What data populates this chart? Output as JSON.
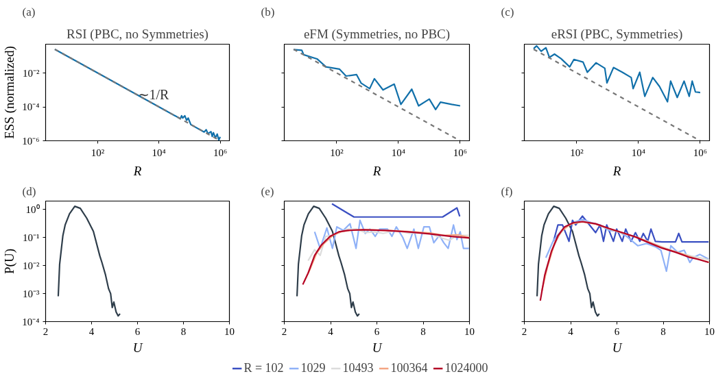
{
  "chart_data": [
    {
      "type": "line",
      "title": "RSI (PBC, no Symmetries)",
      "annotations": [
        "(a)",
        "∼1/R"
      ],
      "xlabel": "R",
      "ylabel": "ESS (normalized)",
      "log": "xy",
      "xlim": [
        2,
        2000000
      ],
      "ylim": [
        1e-06,
        0.5
      ],
      "xticks": [
        {
          "value": 100,
          "label": "10²"
        },
        {
          "value": 10000,
          "label": "10⁴"
        },
        {
          "value": 1000000,
          "label": "10⁶"
        }
      ],
      "yticks": [
        {
          "value": 1e-06,
          "label": "10⁻⁶"
        },
        {
          "value": 0.0001,
          "label": "10⁻⁴"
        },
        {
          "value": 0.01,
          "label": "10⁻²"
        }
      ],
      "series": [
        {
          "color": "#1170aa",
          "x": [
            4,
            100,
            10000,
            50000,
            55000,
            60000,
            70000,
            80000,
            90000,
            110000,
            300000,
            350000,
            400000,
            500000,
            550000,
            600000,
            700000,
            800000,
            900000,
            1000000
          ],
          "values": [
            0.25,
            0.01,
            0.0001,
            2e-05,
            3e-05,
            2.2e-05,
            3e-05,
            1.6e-05,
            2.2e-05,
            9e-06,
            3.3e-06,
            4.5e-06,
            2.6e-06,
            3.5e-06,
            1.8e-06,
            3e-06,
            1.5e-06,
            2.5e-06,
            1.1e-06,
            1.7e-06
          ]
        },
        {
          "color": "#777777",
          "line_style": "dashed",
          "x": [
            4,
            1000000
          ],
          "values": [
            0.25,
            1e-06
          ]
        }
      ]
    },
    {
      "type": "line",
      "title": "eFM (Symmetries, no PBC)",
      "annotations": [
        "(b)"
      ],
      "xlabel": "R",
      "log": "xy",
      "tick_labels": "x",
      "xlim": [
        2,
        2000000
      ],
      "ylim": [
        1e-06,
        0.5
      ],
      "xticks": [
        {
          "value": 100,
          "label": "10²"
        },
        {
          "value": 10000,
          "label": "10⁴"
        },
        {
          "value": 1000000,
          "label": "10⁶"
        }
      ],
      "yticks": [
        {
          "value": 1e-06,
          "label": null
        },
        {
          "value": 0.0001,
          "label": null
        },
        {
          "value": 0.01,
          "label": null
        }
      ],
      "series": [
        {
          "color": "#1170aa",
          "x": [
            4,
            7.4,
            8.5,
            23,
            45,
            122,
            200,
            440,
            620,
            1170,
            1660,
            3160,
            7300,
            12000,
            27000,
            45000,
            100000,
            160000,
            230000,
            530000,
            1000000
          ],
          "values": [
            0.24,
            0.22,
            0.12,
            0.068,
            0.023,
            0.017,
            0.0066,
            0.008,
            0.0025,
            0.0012,
            0.0046,
            0.001,
            0.0022,
            0.00014,
            0.0011,
            0.000115,
            0.00029,
            7e-05,
            0.00019,
            0.00014,
            0.000115
          ]
        },
        {
          "color": "#777777",
          "line_style": "dashed",
          "x": [
            4,
            1000000
          ],
          "values": [
            0.25,
            1e-06
          ]
        }
      ]
    },
    {
      "type": "line",
      "title": "eRSI (PBC, Symmetries)",
      "annotations": [
        "(c)"
      ],
      "xlabel": "R",
      "log": "xy",
      "tick_labels": "x",
      "xlim": [
        2,
        2000000
      ],
      "ylim": [
        1e-06,
        0.5
      ],
      "xticks": [
        {
          "value": 100,
          "label": "10²"
        },
        {
          "value": 10000,
          "label": "10⁴"
        },
        {
          "value": 1000000,
          "label": "10⁶"
        }
      ],
      "yticks": [
        {
          "value": 1e-06,
          "label": null
        },
        {
          "value": 0.0001,
          "label": null
        },
        {
          "value": 0.01,
          "label": null
        }
      ],
      "series": [
        {
          "color": "#1170aa",
          "x": [
            4,
            5,
            7,
            10,
            13,
            19,
            31,
            59,
            81,
            160,
            220,
            420,
            810,
            950,
            1550,
            3000,
            5800,
            6700,
            11000,
            16000,
            29000,
            48000,
            87000,
            110000,
            180000,
            300000,
            440000,
            550000,
            700000,
            1000000
          ],
          "values": [
            0.27,
            0.4,
            0.19,
            0.31,
            0.083,
            0.13,
            0.07,
            0.023,
            0.063,
            0.044,
            0.011,
            0.04,
            0.019,
            0.0026,
            0.021,
            0.011,
            0.0054,
            0.0012,
            0.011,
            0.00042,
            0.0054,
            0.0016,
            0.0002,
            0.0033,
            0.00036,
            0.0033,
            0.00042,
            0.0033,
            0.00076,
            0.0007
          ]
        },
        {
          "color": "#777777",
          "line_style": "dashed",
          "x": [
            4,
            1000000
          ],
          "values": [
            0.25,
            1e-06
          ]
        }
      ]
    },
    {
      "type": "line",
      "annotations": [
        "(d)"
      ],
      "xlabel": "U",
      "ylabel": "P(U)",
      "log": "y",
      "xlim": [
        2,
        10
      ],
      "ylim": [
        0.0001,
        2
      ],
      "xticks": [
        2,
        4,
        6,
        8,
        10
      ],
      "yticks": [
        {
          "value": 0.0001,
          "label": "10⁻⁴"
        },
        {
          "value": 0.001,
          "label": "10⁻³"
        },
        {
          "value": 0.01,
          "label": "10⁻²"
        },
        {
          "value": 0.1,
          "label": "10⁻¹"
        },
        {
          "value": 1,
          "label": "10⁰"
        }
      ],
      "series": [
        {
          "color": "#2e3d4a",
          "x": [
            2.55,
            2.61,
            2.75,
            2.85,
            3.04,
            3.27,
            3.51,
            3.79,
            4.08,
            4.36,
            4.45,
            4.6,
            4.74,
            4.83,
            4.9,
            4.97,
            5.07,
            5.16,
            5.24
          ],
          "values": [
            0.0008,
            0.011,
            0.115,
            0.28,
            0.7,
            1.3,
            1.1,
            0.49,
            0.165,
            0.022,
            0.013,
            0.0049,
            0.0015,
            0.001,
            0.00032,
            0.0005,
            0.00022,
            0.00016,
            0.00019
          ]
        }
      ]
    },
    {
      "type": "line",
      "annotations": [
        "(e)"
      ],
      "xlabel": "U",
      "log": "y",
      "tick_labels": "x",
      "legend": "bottom",
      "xlim": [
        2,
        10
      ],
      "ylim": [
        0.0001,
        2
      ],
      "xticks": [
        2,
        4,
        6,
        8,
        10
      ],
      "yticks": [
        {
          "value": 0.0001,
          "label": null
        },
        {
          "value": 0.001,
          "label": null
        },
        {
          "value": 0.01,
          "label": null
        },
        {
          "value": 0.1,
          "label": null
        },
        {
          "value": 1,
          "label": null
        }
      ],
      "series": [
        {
          "color": "#2e3d4a",
          "x": [
            2.55,
            2.61,
            2.75,
            2.85,
            3.04,
            3.27,
            3.51,
            3.79,
            4.08,
            4.36,
            4.45,
            4.6,
            4.74,
            4.83,
            4.9,
            4.97,
            5.07,
            5.16,
            5.24
          ],
          "values": [
            0.0008,
            0.011,
            0.115,
            0.28,
            0.7,
            1.3,
            1.1,
            0.49,
            0.165,
            0.022,
            0.013,
            0.0049,
            0.0015,
            0.001,
            0.00032,
            0.0005,
            0.00022,
            0.00016,
            0.00019
          ]
        },
        {
          "name": "R = 102",
          "color": "#3a4fc2",
          "x": [
            4.06,
            5.01,
            8.84,
            9.46,
            9.58
          ],
          "values": [
            1.6,
            0.54,
            0.54,
            1.14,
            0.57
          ]
        },
        {
          "name": "1029",
          "color": "#8fb1f7",
          "x": [
            3.31,
            3.55,
            3.84,
            4.08,
            4.27,
            4.55,
            4.84,
            5.1,
            5.27,
            5.5,
            5.7,
            5.93,
            6.12,
            6.46,
            6.65,
            6.84,
            7.12,
            7.31,
            7.6,
            7.79,
            8.03,
            8.27,
            8.46,
            8.7,
            8.89,
            9.08,
            9.31,
            9.46,
            9.6,
            9.74,
            9.98
          ],
          "values": [
            0.16,
            0.041,
            0.22,
            0.041,
            0.24,
            0.18,
            0.31,
            0.041,
            0.41,
            0.14,
            0.2,
            0.11,
            0.2,
            0.2,
            0.11,
            0.24,
            0.1,
            0.041,
            0.2,
            0.041,
            0.24,
            0.24,
            0.065,
            0.12,
            0.065,
            0.041,
            0.28,
            0.085,
            0.16,
            0.041,
            0.041
          ]
        },
        {
          "name": "10493",
          "color": "#dcdcdc",
          "x": [
            3.03,
            3.31,
            3.55,
            3.79,
            4.08,
            4.36,
            4.74,
            5.12,
            5.5,
            5.89,
            6.27,
            6.84,
            7.41,
            7.79,
            8.27,
            8.74,
            9.12,
            9.5,
            9.98
          ],
          "values": [
            0.015,
            0.037,
            0.023,
            0.11,
            0.12,
            0.15,
            0.2,
            0.2,
            0.15,
            0.16,
            0.14,
            0.18,
            0.14,
            0.15,
            0.14,
            0.1,
            0.08,
            0.12,
            0.12
          ]
        },
        {
          "name": "100364",
          "color": "#f4a582",
          "x": [
            2.85,
            3.1,
            3.4,
            3.7,
            4.1,
            4.5,
            5.0,
            5.6,
            6.4,
            7.3,
            8.3,
            8.9,
            9.5,
            10
          ],
          "values": [
            0.0026,
            0.007,
            0.028,
            0.06,
            0.12,
            0.165,
            0.185,
            0.19,
            0.18,
            0.165,
            0.145,
            0.12,
            0.125,
            0.1
          ]
        },
        {
          "name": "1024000",
          "color": "#b40426",
          "x": [
            2.8,
            3.03,
            3.31,
            3.6,
            3.98,
            4.36,
            4.74,
            5.41,
            6.36,
            7.31,
            8.27,
            9.22,
            10
          ],
          "values": [
            0.0021,
            0.0054,
            0.023,
            0.054,
            0.11,
            0.16,
            0.18,
            0.19,
            0.18,
            0.16,
            0.135,
            0.11,
            0.097
          ]
        }
      ]
    },
    {
      "type": "line",
      "annotations": [
        "(f)"
      ],
      "xlabel": "U",
      "log": "y",
      "tick_labels": "x",
      "xlim": [
        2,
        10
      ],
      "ylim": [
        0.0001,
        2
      ],
      "xticks": [
        2,
        4,
        6,
        8,
        10
      ],
      "yticks": [
        {
          "value": 0.0001,
          "label": null
        },
        {
          "value": 0.001,
          "label": null
        },
        {
          "value": 0.01,
          "label": null
        },
        {
          "value": 0.1,
          "label": null
        },
        {
          "value": 1,
          "label": null
        }
      ],
      "series": [
        {
          "color": "#2e3d4a",
          "x": [
            2.55,
            2.61,
            2.75,
            2.85,
            3.04,
            3.27,
            3.51,
            3.79,
            4.08,
            4.36,
            4.45,
            4.6,
            4.74,
            4.83,
            4.9,
            4.97,
            5.07,
            5.16,
            5.24
          ],
          "values": [
            0.0008,
            0.011,
            0.115,
            0.28,
            0.7,
            1.3,
            1.1,
            0.49,
            0.165,
            0.022,
            0.013,
            0.0049,
            0.0015,
            0.001,
            0.00032,
            0.0005,
            0.00022,
            0.00016,
            0.00019
          ]
        },
        {
          "color": "#3a4fc2",
          "x": [
            3.26,
            3.45,
            3.65,
            3.93,
            4.08,
            4.22,
            4.51,
            4.7,
            5.08,
            5.27,
            5.42,
            5.56,
            5.85,
            5.99,
            6.23,
            6.38,
            6.61,
            6.8,
            6.99,
            7.14,
            7.33,
            7.47,
            7.66,
            7.95,
            8.53,
            8.67,
            8.81,
            9.96
          ],
          "values": [
            0.073,
            0.28,
            0.28,
            0.073,
            0.41,
            0.28,
            0.58,
            0.37,
            0.15,
            0.28,
            0.073,
            0.28,
            0.073,
            0.2,
            0.073,
            0.2,
            0.073,
            0.15,
            0.073,
            0.14,
            0.073,
            0.2,
            0.073,
            0.07,
            0.07,
            0.14,
            0.07,
            0.07
          ]
        },
        {
          "color": "#8fb1f7",
          "x": [
            2.93,
            3.26,
            3.74,
            4.22,
            4.51,
            4.89,
            5.27,
            5.66,
            6.04,
            6.42,
            6.9,
            7.28,
            7.66,
            7.9,
            8.14,
            8.33,
            8.62,
            8.91,
            9.15,
            9.29,
            9.58,
            9.96
          ],
          "values": [
            0.019,
            0.08,
            0.24,
            0.37,
            0.44,
            0.34,
            0.28,
            0.18,
            0.17,
            0.11,
            0.051,
            0.061,
            0.047,
            0.035,
            0.0063,
            0.051,
            0.03,
            0.035,
            0.013,
            0.019,
            0.025,
            0.017
          ]
        },
        {
          "color": "#dcdcdc",
          "x": [
            2.9,
            3.2,
            3.5,
            3.8,
            4.2,
            4.6,
            5.1,
            5.7,
            6.3,
            6.9,
            7.4,
            8.0,
            8.6,
            9.2,
            9.6,
            10
          ],
          "values": [
            0.006,
            0.035,
            0.12,
            0.25,
            0.35,
            0.38,
            0.3,
            0.2,
            0.14,
            0.1,
            0.07,
            0.045,
            0.03,
            0.022,
            0.019,
            0.016
          ]
        },
        {
          "color": "#f4a582",
          "x": [
            2.75,
            3.0,
            3.3,
            3.6,
            4.0,
            4.5,
            5.1,
            5.7,
            6.3,
            6.9,
            7.5,
            8.1,
            8.7,
            9.3,
            10
          ],
          "values": [
            0.0012,
            0.009,
            0.06,
            0.17,
            0.3,
            0.36,
            0.3,
            0.2,
            0.14,
            0.1,
            0.063,
            0.04,
            0.028,
            0.019,
            0.013
          ]
        },
        {
          "color": "#b40426",
          "x": [
            2.69,
            2.88,
            3.17,
            3.45,
            3.74,
            4.12,
            4.51,
            5.08,
            5.66,
            6.23,
            6.8,
            7.37,
            7.95,
            8.53,
            9.1,
            9.48,
            9.96
          ],
          "values": [
            0.00056,
            0.0045,
            0.032,
            0.115,
            0.24,
            0.34,
            0.37,
            0.31,
            0.21,
            0.15,
            0.105,
            0.066,
            0.042,
            0.03,
            0.02,
            0.017,
            0.013
          ]
        }
      ]
    }
  ]
}
